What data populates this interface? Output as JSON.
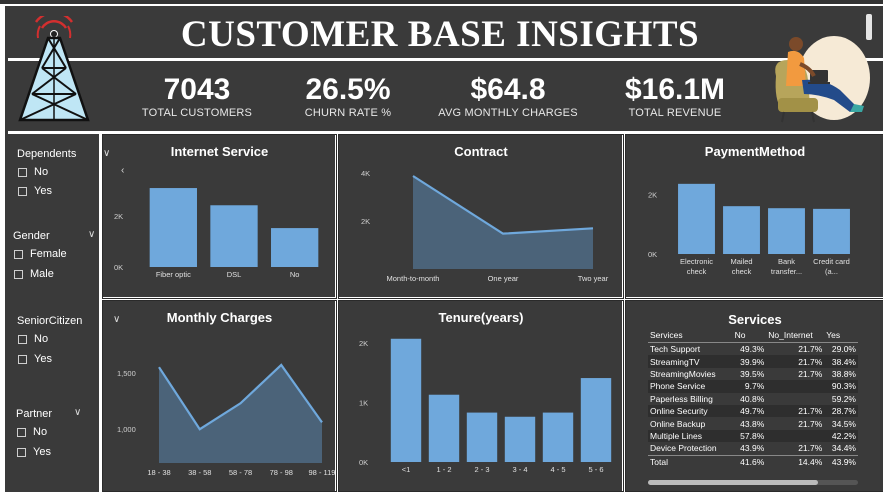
{
  "header": {
    "title": "CUSTOMER BASE INSIGHTS",
    "kpis": [
      {
        "value": "7043",
        "label": "TOTAL CUSTOMERS"
      },
      {
        "value": "26.5%",
        "label": "CHURN RATE  %"
      },
      {
        "value": "$64.8",
        "label": "AVG MONTHLY CHARGES"
      },
      {
        "value": "$16.1M",
        "label": "TOTAL REVENUE"
      }
    ]
  },
  "slicers": [
    {
      "title": "Dependents",
      "options": [
        "No",
        "Yes"
      ]
    },
    {
      "title": "Gender",
      "options": [
        "Female",
        "Male"
      ]
    },
    {
      "title": "SeniorCitizen",
      "options": [
        "No",
        "Yes"
      ]
    },
    {
      "title": "Partner",
      "options": [
        "No",
        "Yes"
      ]
    }
  ],
  "colors": {
    "bar": "#6fa8dc",
    "area": "#4f6b85",
    "line": "#6fa8dc",
    "background": "#3a3a3a"
  },
  "icons": [
    "radio-tower-icon",
    "person-with-laptop-illustration"
  ],
  "chart_data": [
    {
      "type": "bar",
      "title": "Internet Service",
      "categories": [
        "Fiber optic",
        "DSL",
        "No"
      ],
      "values": [
        3096,
        2421,
        1526
      ],
      "yticks": [
        "0K",
        "2K"
      ],
      "ylim": [
        0,
        4000
      ]
    },
    {
      "type": "area",
      "title": "Contract",
      "categories": [
        "Month-to-month",
        "One year",
        "Two year"
      ],
      "values": [
        3875,
        1473,
        1695
      ],
      "yticks": [
        "2K",
        "4K"
      ],
      "ylim": [
        0,
        4000
      ]
    },
    {
      "type": "bar",
      "title": "PaymentMethod",
      "categories": [
        "Electronic check",
        "Mailed check",
        "Bank transfer...",
        "Credit card (a..."
      ],
      "values": [
        2365,
        1612,
        1544,
        1522
      ],
      "yticks": [
        "0K",
        "2K"
      ],
      "ylim": [
        0,
        3000
      ]
    },
    {
      "type": "area",
      "title": "Monthly Charges",
      "categories": [
        "18 - 38",
        "38 - 58",
        "58 - 78",
        "78 - 98",
        "98 - 119"
      ],
      "values": [
        1550,
        1000,
        1230,
        1570,
        1060
      ],
      "yticks": [
        "1,000",
        "1,500"
      ],
      "ylim": [
        700,
        1800
      ]
    },
    {
      "type": "bar",
      "title": "Tenure(years)",
      "categories": [
        "<1",
        "1 - 2",
        "2 - 3",
        "3 - 4",
        "4 - 5",
        "5 - 6"
      ],
      "values": [
        2070,
        1130,
        830,
        760,
        830,
        1410
      ],
      "yticks": [
        "0K",
        "1K",
        "2K"
      ],
      "ylim": [
        0,
        2150
      ]
    },
    {
      "type": "table",
      "title": "Services",
      "columns": [
        "Services",
        "No",
        "No_Internet",
        "Yes"
      ],
      "rows": [
        [
          "Tech Support",
          "49.3%",
          "21.7%",
          "29.0%"
        ],
        [
          "StreamingTV",
          "39.9%",
          "21.7%",
          "38.4%"
        ],
        [
          "StreamingMovies",
          "39.5%",
          "21.7%",
          "38.8%"
        ],
        [
          "Phone Service",
          "9.7%",
          "",
          "90.3%"
        ],
        [
          "Paperless Billing",
          "40.8%",
          "",
          "59.2%"
        ],
        [
          "Online Security",
          "49.7%",
          "21.7%",
          "28.7%"
        ],
        [
          "Online Backup",
          "43.8%",
          "21.7%",
          "34.5%"
        ],
        [
          "Multiple Lines",
          "57.8%",
          "",
          "42.2%"
        ],
        [
          "Device Protection",
          "43.9%",
          "21.7%",
          "34.4%"
        ]
      ],
      "total": [
        "Total",
        "41.6%",
        "14.4%",
        "43.9%"
      ]
    }
  ]
}
